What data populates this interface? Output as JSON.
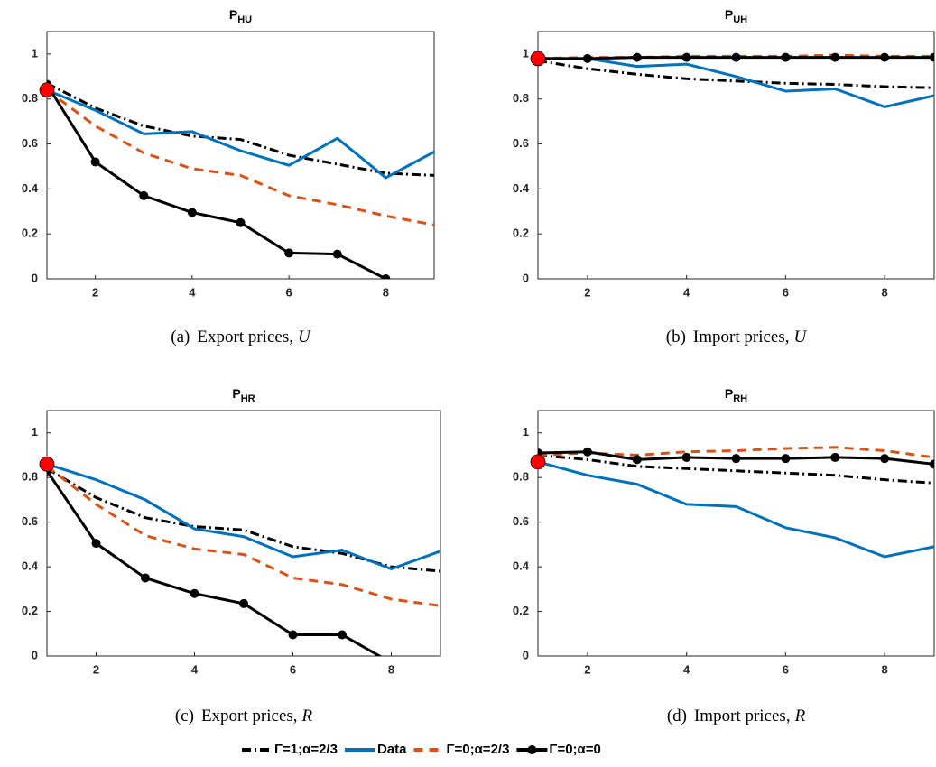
{
  "chart_data": [
    {
      "type": "line",
      "title": "P",
      "title_sub": "HU",
      "caption_label": "(a)",
      "caption": "Export prices,",
      "caption_var": "U",
      "x": [
        1,
        2,
        3,
        4,
        5,
        6,
        7,
        8,
        9
      ],
      "xlim": [
        1,
        9
      ],
      "xticks": [
        2,
        4,
        6,
        8
      ],
      "ylim": [
        0,
        1.1
      ],
      "yticks": [
        0,
        0.2,
        0.4,
        0.6,
        0.8,
        1
      ],
      "series": [
        {
          "values": [
            0.87,
            0.76,
            0.68,
            0.635,
            0.62,
            0.55,
            0.51,
            0.47,
            0.46
          ]
        },
        {
          "values": [
            0.84,
            0.75,
            0.645,
            0.655,
            0.57,
            0.505,
            0.625,
            0.45,
            0.565
          ]
        },
        {
          "values": [
            0.84,
            0.68,
            0.56,
            0.49,
            0.46,
            0.37,
            0.33,
            0.28,
            0.24
          ]
        },
        {
          "values": [
            0.865,
            0.52,
            0.37,
            0.295,
            0.25,
            0.115,
            0.11,
            0,
            null
          ]
        }
      ]
    },
    {
      "type": "line",
      "title": "P",
      "title_sub": "UH",
      "caption_label": "(b)",
      "caption": "Import prices,",
      "caption_var": "U",
      "x": [
        1,
        2,
        3,
        4,
        5,
        6,
        7,
        8,
        9
      ],
      "xlim": [
        1,
        9
      ],
      "xticks": [
        2,
        4,
        6,
        8
      ],
      "ylim": [
        0,
        1.1
      ],
      "yticks": [
        0,
        0.2,
        0.4,
        0.6,
        0.8,
        1
      ],
      "series": [
        {
          "values": [
            0.97,
            0.935,
            0.91,
            0.89,
            0.88,
            0.87,
            0.865,
            0.855,
            0.85
          ]
        },
        {
          "values": [
            0.98,
            0.98,
            0.945,
            0.955,
            0.9,
            0.835,
            0.845,
            0.765,
            0.815
          ]
        },
        {
          "values": [
            0.98,
            0.985,
            0.985,
            0.99,
            0.99,
            0.99,
            0.995,
            0.99,
            0.99
          ]
        },
        {
          "values": [
            0.98,
            0.98,
            0.985,
            0.985,
            0.985,
            0.985,
            0.985,
            0.985,
            0.985
          ]
        }
      ]
    },
    {
      "type": "line",
      "title": "P",
      "title_sub": "HR",
      "caption_label": "(c)",
      "caption": "Export prices,",
      "caption_var": "R",
      "x": [
        1,
        2,
        3,
        4,
        5,
        6,
        7,
        8,
        9
      ],
      "xlim": [
        1,
        9
      ],
      "xticks": [
        2,
        4,
        6,
        8
      ],
      "ylim": [
        0,
        1.1
      ],
      "yticks": [
        0,
        0.2,
        0.4,
        0.6,
        0.8,
        1
      ],
      "series": [
        {
          "values": [
            0.84,
            0.71,
            0.62,
            0.58,
            0.565,
            0.49,
            0.46,
            0.4,
            0.38
          ]
        },
        {
          "values": [
            0.86,
            0.79,
            0.7,
            0.57,
            0.535,
            0.445,
            0.475,
            0.39,
            0.47
          ]
        },
        {
          "values": [
            0.85,
            0.68,
            0.54,
            0.48,
            0.455,
            0.35,
            0.32,
            0.255,
            0.225
          ]
        },
        {
          "values": [
            0.83,
            0.505,
            0.35,
            0.28,
            0.235,
            0.095,
            0.095,
            -0.03,
            null
          ]
        }
      ]
    },
    {
      "type": "line",
      "title": "P",
      "title_sub": "RH",
      "caption_label": "(d)",
      "caption": "Import prices,",
      "caption_var": "R",
      "x": [
        1,
        2,
        3,
        4,
        5,
        6,
        7,
        8,
        9
      ],
      "xlim": [
        1,
        9
      ],
      "xticks": [
        2,
        4,
        6,
        8
      ],
      "ylim": [
        0,
        1.1
      ],
      "yticks": [
        0,
        0.2,
        0.4,
        0.6,
        0.8,
        1
      ],
      "series": [
        {
          "values": [
            0.9,
            0.88,
            0.85,
            0.84,
            0.83,
            0.82,
            0.81,
            0.79,
            0.775
          ]
        },
        {
          "values": [
            0.87,
            0.81,
            0.77,
            0.68,
            0.67,
            0.575,
            0.53,
            0.445,
            0.49
          ]
        },
        {
          "values": [
            0.9,
            0.91,
            0.9,
            0.915,
            0.92,
            0.93,
            0.935,
            0.92,
            0.89
          ]
        },
        {
          "values": [
            0.91,
            0.915,
            0.88,
            0.89,
            0.885,
            0.885,
            0.89,
            0.885,
            0.86
          ]
        }
      ]
    }
  ],
  "legend": {
    "entries": [
      {
        "name": "Γ=1;α=2/3",
        "color": "#000000",
        "dash": "10,4,2,4",
        "marker": false
      },
      {
        "name": "Data",
        "color": "#0072bd",
        "dash": "none",
        "marker": false
      },
      {
        "name": "Γ=0;α=2/3",
        "color": "#d95319",
        "dash": "10,7",
        "marker": false
      },
      {
        "name": "Γ=0;α=0",
        "color": "#000000",
        "dash": "none",
        "marker": true
      }
    ]
  },
  "start_marker": {
    "series": 1,
    "color": "#ff0000"
  }
}
